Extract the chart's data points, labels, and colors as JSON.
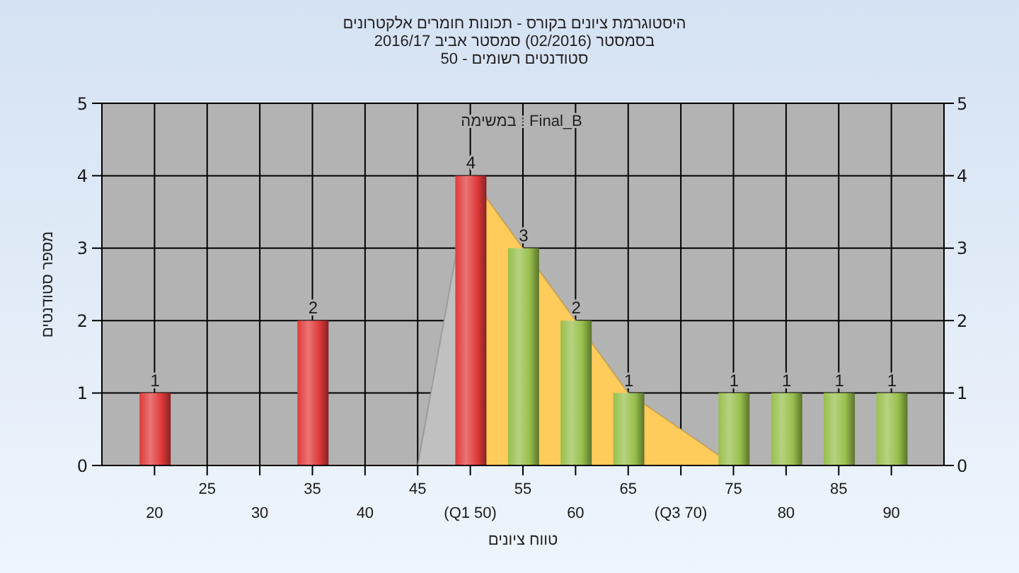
{
  "chart_data": {
    "type": "bar",
    "title": "היסטוגרמת ציונים בקורס - תכונות חומרים אלקטרונים",
    "subtitle": "בסמסטר  (02/2016)  סמסטר אביב 2016/17\nסטודנטים רשומים - 50",
    "xlabel": "טווח ציונים",
    "ylabel": "מספר סטודנטים",
    "annotations": [
      "במשימה : Final_B"
    ],
    "categories": [
      "20",
      "25",
      "30",
      "35",
      "40",
      "45",
      "(Q1 50)",
      "55",
      "60",
      "65",
      "(Q3 70)",
      "75",
      "80",
      "85",
      "90"
    ],
    "series": [
      {
        "values": [
          1,
          0,
          0,
          2,
          0,
          0,
          4,
          3,
          2,
          1,
          0,
          1,
          1,
          1,
          1
        ],
        "colors": [
          "#e03a3a",
          "#e03a3a",
          "#e03a3a",
          "#e03a3a",
          "#e03a3a",
          "#e03a3a",
          "#e03a3a",
          "#98bf4c",
          "#98bf4c",
          "#98bf4c",
          "#98bf4c",
          "#98bf4c",
          "#98bf4c",
          "#98bf4c",
          "#98bf4c"
        ],
        "value_labels": [
          "1",
          null,
          null,
          "2",
          null,
          null,
          "4",
          "3",
          "2",
          "1",
          null,
          "1",
          "1",
          "1",
          "1"
        ]
      },
      {
        "type": "area",
        "color": "#c0c0c0",
        "values": [
          null,
          null,
          null,
          null,
          null,
          0,
          4,
          null,
          null,
          null,
          null,
          null,
          null,
          null,
          null
        ]
      },
      {
        "type": "area",
        "color": "#ffcc5c",
        "values": [
          null,
          null,
          null,
          null,
          null,
          null,
          4,
          3,
          2,
          1,
          0.5,
          0,
          null,
          null,
          null
        ]
      }
    ],
    "ylim": [
      0,
      5
    ],
    "yticks": [
      0,
      1,
      2,
      3,
      4,
      5
    ],
    "y2lim": [
      0,
      5
    ],
    "y2ticks": [
      0,
      1,
      2,
      3,
      4,
      5
    ],
    "grid": true
  }
}
